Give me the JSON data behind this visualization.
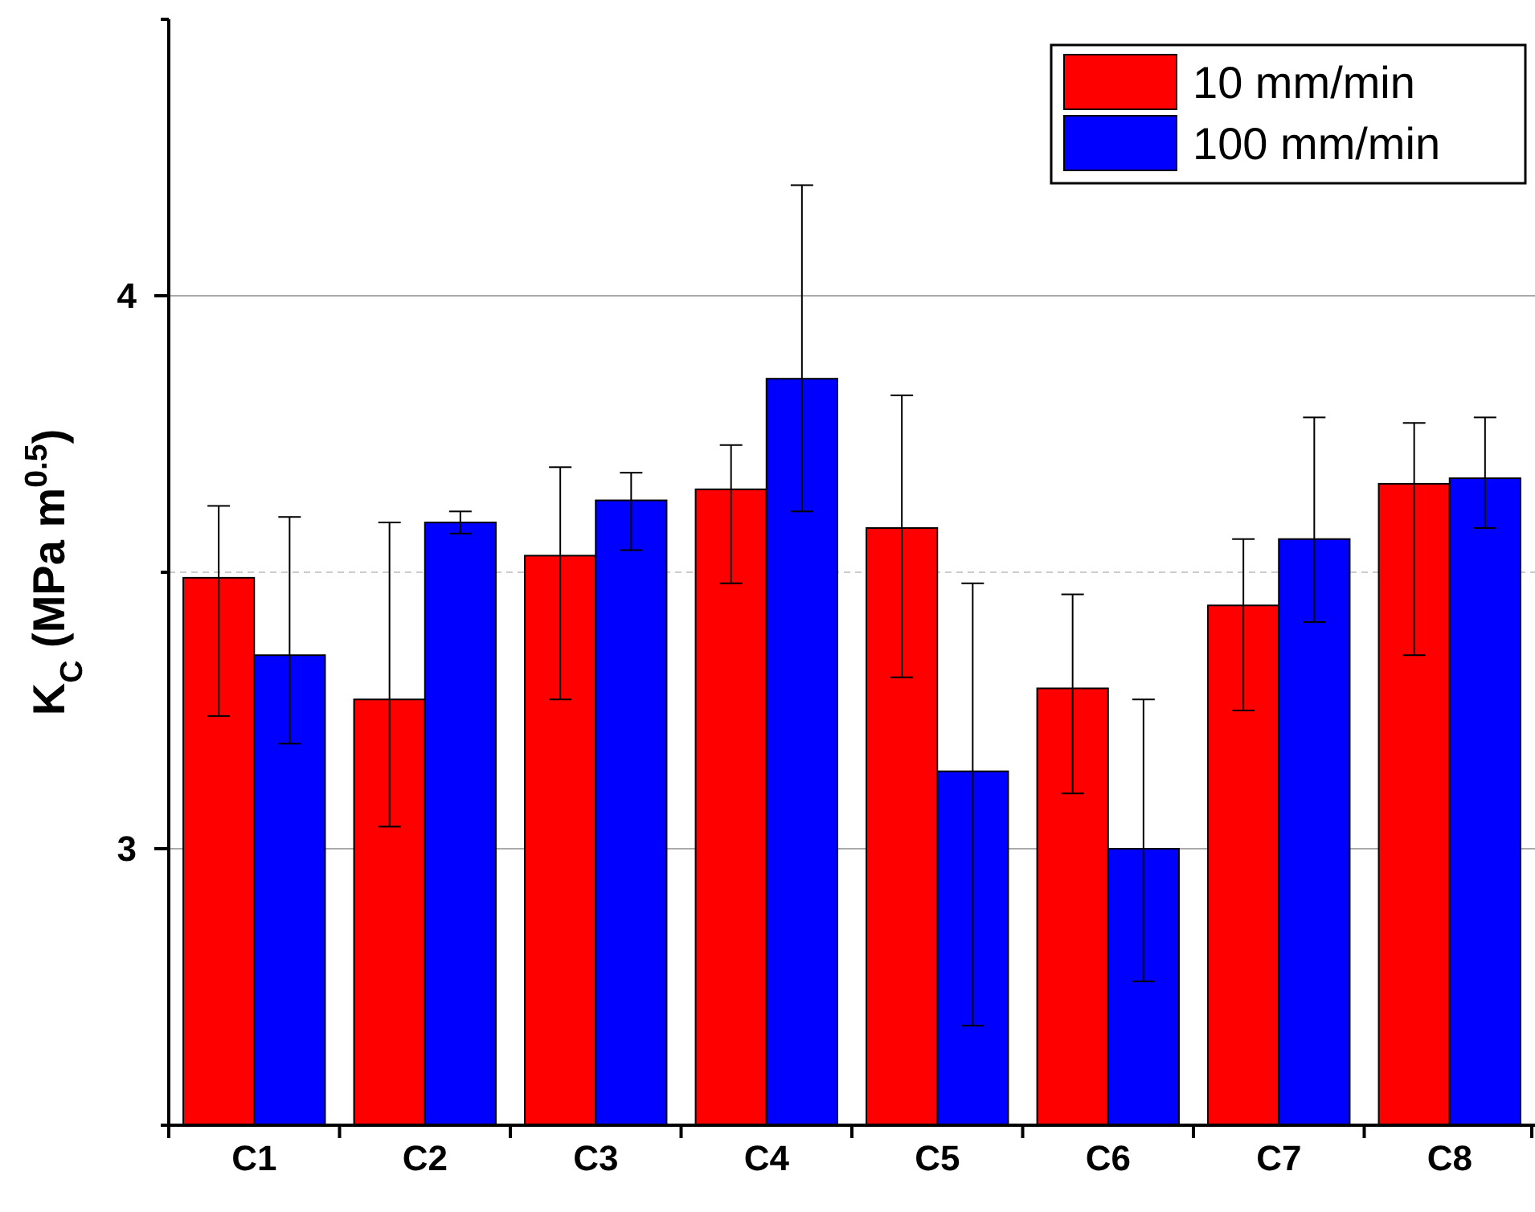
{
  "chart_data": {
    "type": "bar",
    "ylabel": "K$_{C}$ (MPa m$^{0.5}$)",
    "categories": [
      "C1",
      "C2",
      "C3",
      "C4",
      "C5",
      "C6",
      "C7",
      "C8"
    ],
    "series": [
      {
        "name": "10 mm/min",
        "color": "#ff0000",
        "values": [
          3.49,
          3.27,
          3.53,
          3.65,
          3.58,
          3.29,
          3.44,
          3.66
        ],
        "errors": [
          [
            3.24,
            3.62
          ],
          [
            3.04,
            3.59
          ],
          [
            3.27,
            3.69
          ],
          [
            3.48,
            3.73
          ],
          [
            3.31,
            3.82
          ],
          [
            3.1,
            3.46
          ],
          [
            3.25,
            3.56
          ],
          [
            3.35,
            3.77
          ]
        ]
      },
      {
        "name": "100 mm/min",
        "color": "#0000ff",
        "values": [
          3.35,
          3.59,
          3.63,
          3.85,
          3.14,
          3.0,
          3.56,
          3.67
        ],
        "errors": [
          [
            3.19,
            3.6
          ],
          [
            3.57,
            3.61
          ],
          [
            3.54,
            3.68
          ],
          [
            3.61,
            4.2
          ],
          [
            2.68,
            3.48
          ],
          [
            2.76,
            3.27
          ],
          [
            3.41,
            3.78
          ],
          [
            3.58,
            3.78
          ]
        ]
      }
    ],
    "ylim": [
      2.5,
      4.5
    ],
    "yticks": [
      {
        "value": 2.5,
        "label": null
      },
      3,
      {
        "value": 3.5,
        "label": null
      },
      4,
      {
        "value": 4.5,
        "label": null
      }
    ],
    "ref_lines": [
      {
        "axis": "y",
        "value": 3.5,
        "color": "#cccccc",
        "line_style": "dashed"
      }
    ],
    "grid": "y",
    "legend": "top right"
  }
}
